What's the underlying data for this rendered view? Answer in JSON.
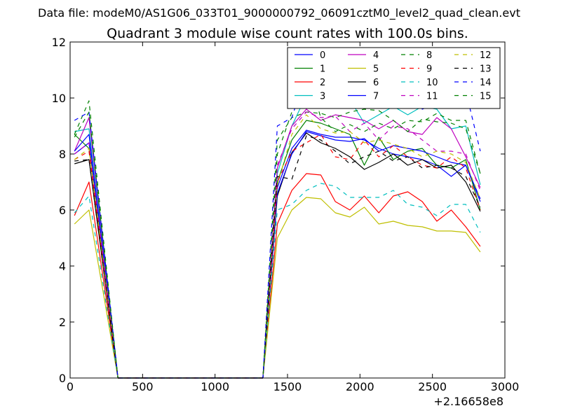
{
  "figure": {
    "suptitle": "Data file: modeM0/AS1G06_033T01_9000000792_06091cztM0_level2_quad_clean.evt"
  },
  "chart_data": {
    "type": "line",
    "title": "Quadrant 3 module wise count rates with 100.0s bins.",
    "xlabel": "",
    "ylabel": "",
    "x_offset_label": "+2.16658e8",
    "xlim": [
      0,
      3000
    ],
    "ylim": [
      0,
      12
    ],
    "x_ticks": [
      0,
      500,
      1000,
      1500,
      2000,
      2500,
      3000
    ],
    "y_ticks": [
      0,
      2,
      4,
      6,
      8,
      10,
      12
    ],
    "grid": false,
    "legend_position": "top-right",
    "legend_columns": 4,
    "x": [
      30,
      130,
      330,
      430,
      530,
      630,
      730,
      830,
      930,
      1030,
      1130,
      1230,
      1330,
      1430,
      1530,
      1630,
      1730,
      1830,
      1930,
      2030,
      2130,
      2230,
      2330,
      2430,
      2530,
      2630,
      2730,
      2830
    ],
    "series": [
      {
        "name": "0",
        "color": "#0000ff",
        "dash": "solid",
        "values": [
          8.0,
          8.4,
          0,
          0,
          0,
          0,
          0,
          0,
          0,
          0,
          0,
          0,
          0,
          6.8,
          8.2,
          8.85,
          8.7,
          8.6,
          8.6,
          8.5,
          8.2,
          8.0,
          7.9,
          7.8,
          7.6,
          7.2,
          7.6,
          6.3
        ]
      },
      {
        "name": "1",
        "color": "#008000",
        "dash": "solid",
        "values": [
          8.7,
          8.2,
          0,
          0,
          0,
          0,
          0,
          0,
          0,
          0,
          0,
          0,
          0,
          7.0,
          8.5,
          9.2,
          9.1,
          8.9,
          8.7,
          7.6,
          8.6,
          7.8,
          8.1,
          8.2,
          7.6,
          7.5,
          7.8,
          6.0
        ]
      },
      {
        "name": "2",
        "color": "#ff0000",
        "dash": "solid",
        "values": [
          5.8,
          7.0,
          0,
          0,
          0,
          0,
          0,
          0,
          0,
          0,
          0,
          0,
          0,
          5.5,
          6.7,
          7.3,
          7.25,
          6.3,
          6.0,
          6.5,
          5.9,
          6.5,
          6.65,
          6.3,
          5.6,
          6.0,
          5.4,
          4.7
        ]
      },
      {
        "name": "3",
        "color": "#00bfbf",
        "dash": "solid",
        "values": [
          8.8,
          8.9,
          0,
          0,
          0,
          0,
          0,
          0,
          0,
          0,
          0,
          0,
          0,
          7.3,
          9.0,
          10.1,
          9.85,
          9.9,
          9.95,
          9.1,
          9.4,
          9.7,
          9.4,
          9.7,
          9.6,
          8.9,
          9.0,
          6.9
        ]
      },
      {
        "name": "4",
        "color": "#bf00bf",
        "dash": "solid",
        "values": [
          8.1,
          9.3,
          0,
          0,
          0,
          0,
          0,
          0,
          0,
          0,
          0,
          0,
          0,
          7.5,
          9.0,
          9.6,
          9.2,
          9.4,
          9.3,
          9.2,
          8.9,
          9.2,
          8.8,
          8.7,
          9.3,
          8.9,
          7.9,
          6.8
        ]
      },
      {
        "name": "5",
        "color": "#bfbf00",
        "dash": "solid",
        "values": [
          5.5,
          6.0,
          0,
          0,
          0,
          0,
          0,
          0,
          0,
          0,
          0,
          0,
          0,
          5.0,
          6.0,
          6.45,
          6.4,
          5.9,
          5.75,
          6.1,
          5.5,
          5.6,
          5.45,
          5.4,
          5.25,
          5.25,
          5.2,
          4.5
        ]
      },
      {
        "name": "6",
        "color": "#000000",
        "dash": "solid",
        "values": [
          7.65,
          7.8,
          0,
          0,
          0,
          0,
          0,
          0,
          0,
          0,
          0,
          0,
          0,
          6.5,
          8.05,
          8.75,
          8.4,
          8.2,
          7.9,
          7.45,
          7.7,
          8.0,
          7.6,
          7.8,
          7.5,
          7.6,
          7.0,
          5.95
        ]
      },
      {
        "name": "7",
        "color": "#0000ff",
        "dash": "solid",
        "values": [
          8.1,
          8.7,
          0,
          0,
          0,
          0,
          0,
          0,
          0,
          0,
          0,
          0,
          0,
          6.6,
          8.0,
          8.8,
          8.65,
          8.5,
          8.45,
          8.55,
          8.1,
          8.3,
          8.2,
          8.1,
          7.9,
          7.7,
          7.6,
          6.4
        ]
      },
      {
        "name": "8",
        "color": "#008000",
        "dash": "dashed",
        "values": [
          8.7,
          9.9,
          0,
          0,
          0,
          0,
          0,
          0,
          0,
          0,
          0,
          0,
          0,
          8.5,
          9.3,
          9.5,
          9.45,
          9.3,
          9.5,
          9.6,
          9.55,
          9.2,
          8.8,
          9.25,
          9.15,
          9.1,
          8.9,
          7.3
        ]
      },
      {
        "name": "9",
        "color": "#ff0000",
        "dash": "dashed",
        "values": [
          7.8,
          8.1,
          0,
          0,
          0,
          0,
          0,
          0,
          0,
          0,
          0,
          0,
          0,
          7.0,
          8.1,
          8.4,
          8.7,
          7.9,
          7.8,
          8.5,
          7.9,
          8.3,
          7.9,
          7.6,
          7.5,
          7.9,
          7.5,
          6.0
        ]
      },
      {
        "name": "10",
        "color": "#00bfbf",
        "dash": "dashed",
        "values": [
          5.9,
          6.5,
          0,
          0,
          0,
          0,
          0,
          0,
          0,
          0,
          0,
          0,
          0,
          6.0,
          6.2,
          6.7,
          6.95,
          6.85,
          6.45,
          6.45,
          6.45,
          6.7,
          6.2,
          6.1,
          5.8,
          6.2,
          6.2,
          5.2
        ]
      },
      {
        "name": "11",
        "color": "#bf00bf",
        "dash": "dashed",
        "values": [
          8.0,
          8.4,
          0,
          0,
          0,
          0,
          0,
          0,
          0,
          0,
          0,
          0,
          0,
          7.6,
          8.9,
          9.5,
          9.3,
          9.35,
          8.8,
          9.1,
          8.5,
          9.0,
          8.9,
          8.5,
          8.1,
          8.1,
          8.0,
          6.7
        ]
      },
      {
        "name": "12",
        "color": "#bfbf00",
        "dash": "dashed",
        "values": [
          7.8,
          8.2,
          0,
          0,
          0,
          0,
          0,
          0,
          0,
          0,
          0,
          0,
          0,
          6.9,
          8.7,
          9.4,
          8.9,
          8.75,
          8.8,
          8.4,
          8.5,
          8.35,
          8.2,
          7.9,
          8.1,
          8.0,
          7.7,
          6.4
        ]
      },
      {
        "name": "13",
        "color": "#000000",
        "dash": "dashed",
        "values": [
          7.75,
          7.8,
          0,
          0,
          0,
          0,
          0,
          0,
          0,
          0,
          0,
          0,
          0,
          7.2,
          7.1,
          8.65,
          8.5,
          8.1,
          7.65,
          7.9,
          8.1,
          7.75,
          7.9,
          7.5,
          7.6,
          7.5,
          7.2,
          6.1
        ]
      },
      {
        "name": "14",
        "color": "#0000ff",
        "dash": "dashed",
        "values": [
          9.2,
          9.5,
          0,
          0,
          0,
          0,
          0,
          0,
          0,
          0,
          0,
          0,
          0,
          9.0,
          9.3,
          10.9,
          10.3,
          10.3,
          10.25,
          10.2,
          9.7,
          9.95,
          10.4,
          9.6,
          9.8,
          10.5,
          10.25,
          8.1
        ]
      },
      {
        "name": "15",
        "color": "#008000",
        "dash": "dashed",
        "values": [
          8.6,
          9.5,
          0,
          0,
          0,
          0,
          0,
          0,
          0,
          0,
          0,
          0,
          0,
          8.0,
          9.5,
          11.0,
          9.3,
          8.8,
          9.05,
          8.8,
          9.1,
          8.9,
          9.2,
          9.15,
          9.45,
          9.2,
          9.2,
          7.3
        ]
      }
    ]
  }
}
